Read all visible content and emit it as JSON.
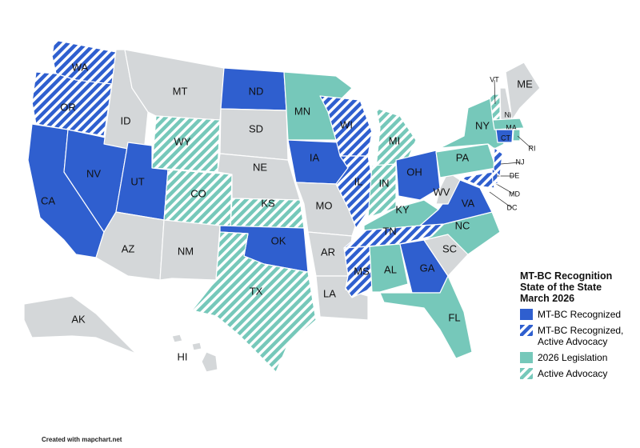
{
  "title": "MT-BC Recognition State of the State March 2026",
  "legend": {
    "items": [
      {
        "name": "MT-BC Recognized",
        "color": "#2f5fcf",
        "hatched": false,
        "states": [
          "ND",
          "IA",
          "OH",
          "CA",
          "NV",
          "UT",
          "OK",
          "VA",
          "GA",
          "CT"
        ]
      },
      {
        "name": "MT-BC Recognized, Active Advocacy",
        "color": "#2f5fcf",
        "hatched": true,
        "states": [
          "WA",
          "OR",
          "WI",
          "IL",
          "TN",
          "MS",
          "NJ",
          "MD",
          "DE"
        ]
      },
      {
        "name": "2026 Legislation",
        "color": "#76c8ba",
        "hatched": false,
        "states": [
          "MN",
          "NY",
          "PA",
          "KY",
          "NC",
          "AL",
          "FL",
          "MA",
          "RI"
        ]
      },
      {
        "name": "Active Advocacy",
        "color": "#76c8ba",
        "hatched": true,
        "states": [
          "WY",
          "CO",
          "KS",
          "TX",
          "MI",
          "IN",
          "VT"
        ]
      }
    ]
  },
  "other_states": {
    "color": "#d4d7d9",
    "states": [
      "MT",
      "ID",
      "SD",
      "NE",
      "MO",
      "AR",
      "LA",
      "AZ",
      "NM",
      "WV",
      "SC",
      "ME",
      "NH",
      "AK",
      "HI",
      "DC"
    ]
  },
  "credit": "Created with mapchart.net"
}
